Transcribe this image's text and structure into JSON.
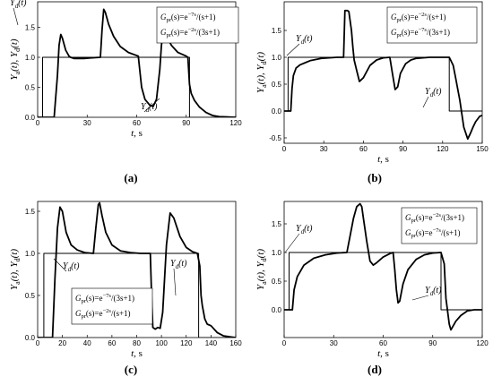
{
  "chart_data": [
    {
      "type": "line",
      "panel_label": "(a)",
      "xlabel_var": "t",
      "xlabel_unit": ", s",
      "ylabel_parts": [
        "Y",
        "a",
        "(t), ",
        "Y",
        "d",
        "(t)"
      ],
      "xlim": [
        0,
        120
      ],
      "ylim": [
        0,
        1.8
      ],
      "xticks": [
        0,
        30,
        60,
        90,
        120
      ],
      "yticks": [],
      "grid": false,
      "legend": [
        {
          "pre": "G",
          "sub": "pr",
          "post": "(s)=e",
          "sup": "−7s",
          "tail": "/(s+1)"
        },
        {
          "pre": "G",
          "sub": "pr",
          "post": "(s)=e",
          "sup": "−2s",
          "tail": "/(3s+1)"
        }
      ],
      "series": [
        {
          "label_main": "Y",
          "label_sub": "d",
          "label_post": "(t)",
          "x": [
            0,
            3,
            3,
            92,
            92,
            120
          ],
          "y": [
            0,
            0,
            1,
            1,
            0,
            0
          ]
        },
        {
          "label_main": "Y",
          "label_sub": "a",
          "label_post": "(t)",
          "x": [
            0,
            10,
            12,
            13,
            14,
            15,
            17,
            19,
            20,
            22,
            28,
            32,
            38,
            39,
            40,
            41,
            43,
            46,
            50,
            55,
            61,
            62,
            63,
            65,
            68,
            70,
            72,
            74,
            75,
            76,
            78,
            81,
            85,
            90,
            91,
            92,
            93,
            95,
            98,
            102,
            106,
            110,
            120
          ],
          "y": [
            0,
            0,
            0.7,
            1.2,
            1.38,
            1.32,
            1.12,
            1.02,
            1.0,
            0.98,
            0.98,
            0.99,
            1.0,
            1.45,
            1.8,
            1.75,
            1.55,
            1.35,
            1.18,
            1.08,
            1.02,
            0.75,
            0.5,
            0.3,
            0.2,
            0.18,
            0.3,
            0.8,
            1.2,
            1.4,
            1.35,
            1.2,
            1.08,
            1.02,
            1.0,
            0.55,
            0.4,
            0.28,
            0.17,
            0.08,
            0.03,
            0.01,
            0
          ]
        }
      ],
      "annotations": [
        {
          "main": "Y",
          "sub": "d",
          "post": "(t)"
        },
        {
          "main": "Y",
          "sub": "d",
          "post": "(t)"
        }
      ]
    },
    {
      "type": "line",
      "panel_label": "(b)",
      "xlabel_var": "t",
      "xlabel_unit": ", s",
      "ylabel_parts": [
        "Y",
        "a",
        "(t), ",
        "Y",
        "d",
        "(t)"
      ],
      "xlim": [
        0,
        150
      ],
      "ylim": [
        -0.6,
        2.0
      ],
      "xticks": [
        0,
        30,
        60,
        90,
        120,
        150
      ],
      "yticks": [
        -0.5,
        0.0,
        0.5,
        1.0,
        1.5
      ],
      "grid": false,
      "legend": [
        {
          "pre": "G",
          "sub": "pr",
          "post": "(s)=e",
          "sup": "−2s",
          "tail": "/(s+1)"
        },
        {
          "pre": "G",
          "sub": "pr",
          "post": "(s)=e",
          "sup": "−7s",
          "tail": "/(3s+1)"
        }
      ],
      "series": [
        {
          "label_main": "Y",
          "label_sub": "d",
          "label_post": "(t)",
          "x": [
            0,
            3,
            3,
            125,
            125,
            150
          ],
          "y": [
            0,
            0,
            1,
            1,
            0,
            0
          ]
        },
        {
          "label_main": "Y",
          "label_sub": "a",
          "label_post": "(t)",
          "x": [
            0,
            5,
            6,
            7,
            9,
            12,
            16,
            20,
            28,
            40,
            45,
            46,
            48,
            49,
            51,
            52,
            53,
            55,
            57,
            60,
            65,
            70,
            75,
            80,
            82,
            84,
            86,
            88,
            92,
            96,
            100,
            110,
            120,
            125,
            128,
            130,
            133,
            136,
            139,
            141,
            143,
            145,
            148,
            150
          ],
          "y": [
            0,
            0,
            0.42,
            0.66,
            0.8,
            0.86,
            0.9,
            0.94,
            0.98,
            1.0,
            1.0,
            1.87,
            1.87,
            1.85,
            1.5,
            1.2,
            0.95,
            0.75,
            0.55,
            0.62,
            0.85,
            0.95,
            0.99,
            1.0,
            0.7,
            0.4,
            0.45,
            0.7,
            0.88,
            0.95,
            0.98,
            1.0,
            1.0,
            1.0,
            0.85,
            0.6,
            0.2,
            -0.3,
            -0.52,
            -0.42,
            -0.3,
            -0.2,
            -0.1,
            -0.08
          ]
        }
      ],
      "annotations": [
        {
          "main": "Y",
          "sub": "d",
          "post": "(t)"
        },
        {
          "main": "Y",
          "sub": "d",
          "post": "(t)"
        }
      ]
    },
    {
      "type": "line",
      "panel_label": "(c)",
      "xlabel_var": "t",
      "xlabel_unit": ", s",
      "ylabel_parts": [
        "Y",
        "a",
        "(t), ",
        "Y",
        "d",
        "(t)"
      ],
      "xlim": [
        0,
        160
      ],
      "ylim": [
        0,
        1.7
      ],
      "xticks": [
        0,
        20,
        40,
        60,
        80,
        100,
        120,
        140,
        160
      ],
      "yticks": [
        0.0,
        0.5,
        1.0,
        1.5
      ],
      "grid": false,
      "legend": [
        {
          "pre": "G",
          "sub": "pr",
          "post": "(s)=e",
          "sup": "−7s",
          "tail": "/(3s+1)"
        },
        {
          "pre": "G",
          "sub": "pr",
          "post": "(s)=e",
          "sup": "−2s",
          "tail": "/(s+1)"
        }
      ],
      "series": [
        {
          "label_main": "Y",
          "label_sub": "d",
          "label_post": "(t)",
          "x": [
            0,
            5,
            5,
            130,
            130,
            160
          ],
          "y": [
            0,
            0,
            1,
            1,
            0,
            0
          ]
        },
        {
          "label_main": "Y",
          "label_sub": "a",
          "label_post": "(t)",
          "x": [
            0,
            12,
            14,
            16,
            18,
            20,
            23,
            27,
            32,
            38,
            45,
            47,
            49,
            50,
            52,
            55,
            60,
            67,
            75,
            83,
            91,
            92,
            93,
            95,
            97,
            99,
            101,
            104,
            107,
            110,
            115,
            120,
            125,
            129,
            131,
            132,
            133,
            135,
            137,
            140,
            145,
            150,
            155,
            160
          ],
          "y": [
            0,
            0,
            0.7,
            1.3,
            1.55,
            1.5,
            1.25,
            1.1,
            1.04,
            1.01,
            1.0,
            1.3,
            1.58,
            1.6,
            1.45,
            1.25,
            1.1,
            1.03,
            1.01,
            1.0,
            1.0,
            0.5,
            0.12,
            0.1,
            0.12,
            0.11,
            0.3,
            1.1,
            1.48,
            1.42,
            1.2,
            1.07,
            1.02,
            1.0,
            0.85,
            0.5,
            0.38,
            0.22,
            0.16,
            0.14,
            0.06,
            0.02,
            0.01,
            0.0
          ]
        }
      ],
      "annotations": [
        {
          "main": "Y",
          "sub": "d",
          "post": "(t)"
        },
        {
          "main": "Y",
          "sub": "d",
          "post": "(t)"
        }
      ]
    },
    {
      "type": "line",
      "panel_label": "(d)",
      "xlabel_var": "t",
      "xlabel_unit": ", s",
      "ylabel_parts": [
        "Y",
        "a",
        "(t), ",
        "Y",
        "d",
        "(t)"
      ],
      "xlim": [
        0,
        120
      ],
      "ylim": [
        -0.4,
        1.95
      ],
      "xticks": [
        0,
        30,
        60,
        90,
        120
      ],
      "yticks": [],
      "grid": false,
      "legend": [
        {
          "pre": "G",
          "sub": "pr",
          "post": "(s)=e",
          "sup": "−2s",
          "tail": "/(3s+1)"
        },
        {
          "pre": "G",
          "sub": "pr",
          "post": "(s)=e",
          "sup": "−7s",
          "tail": "/(s+1)"
        }
      ],
      "series": [
        {
          "label_main": "Y",
          "label_sub": "d",
          "label_post": "(t)",
          "x": [
            0,
            3,
            3,
            95,
            95,
            120
          ],
          "y": [
            0,
            0,
            1,
            1,
            0,
            0
          ]
        },
        {
          "label_main": "Y",
          "label_sub": "a",
          "label_post": "(t)",
          "x": [
            0,
            5,
            6,
            8,
            12,
            18,
            25,
            32,
            38,
            40,
            42,
            44,
            46,
            47,
            48,
            50,
            52,
            54,
            56,
            60,
            64,
            66,
            67,
            68,
            69,
            70,
            72,
            75,
            80,
            85,
            90,
            95,
            97,
            98,
            100,
            101,
            102,
            104,
            107,
            111,
            115,
            120
          ],
          "y": [
            0,
            0,
            0.35,
            0.58,
            0.78,
            0.9,
            0.96,
            0.99,
            1.0,
            1.3,
            1.6,
            1.8,
            1.85,
            1.8,
            1.6,
            1.2,
            0.85,
            0.78,
            0.82,
            0.92,
            0.98,
            1.0,
            0.7,
            0.35,
            0.12,
            0.15,
            0.45,
            0.7,
            0.88,
            0.96,
            0.99,
            1.0,
            0.8,
            0.2,
            -0.25,
            -0.35,
            -0.3,
            -0.2,
            -0.1,
            -0.02,
            0.0,
            0.0
          ]
        }
      ],
      "annotations": [
        {
          "main": "Y",
          "sub": "d",
          "post": "(t)"
        },
        {
          "main": "Y",
          "sub": "d",
          "post": "(t)"
        }
      ]
    }
  ]
}
